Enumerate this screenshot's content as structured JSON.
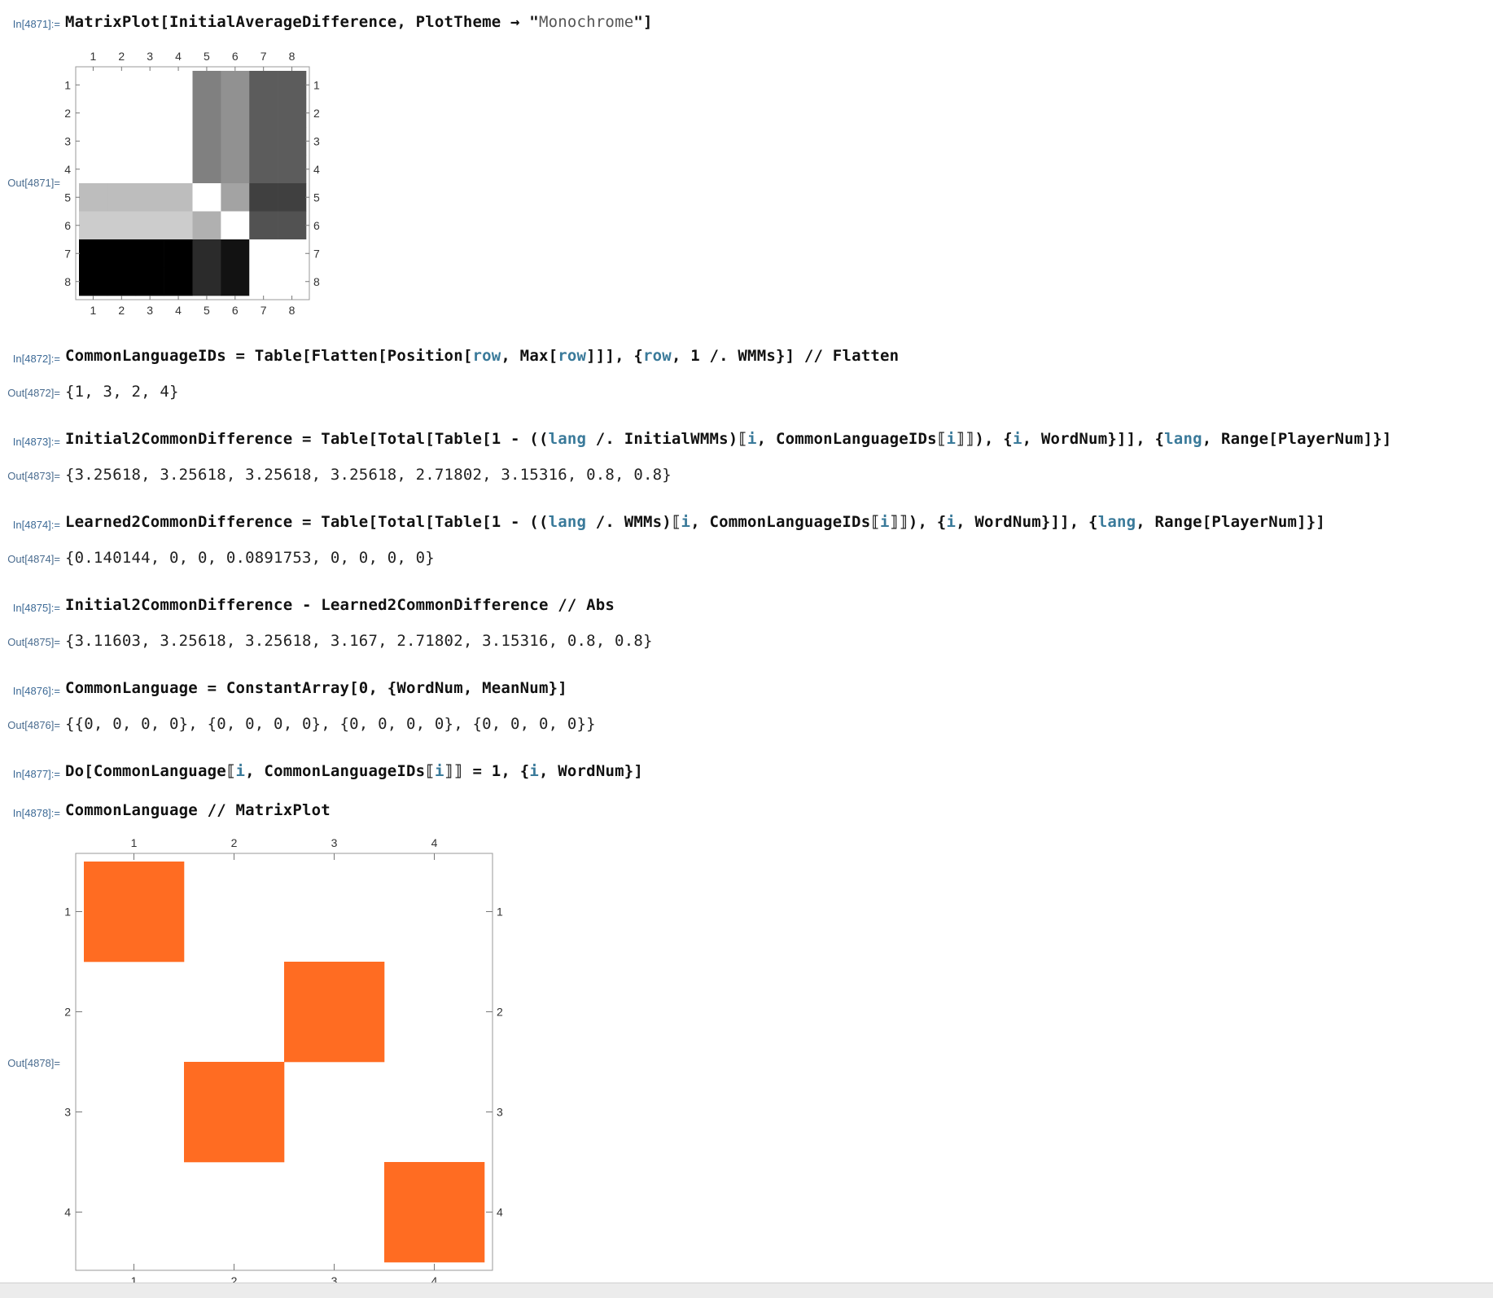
{
  "cells": [
    {
      "in_label": "In[4871]:=",
      "out_label": "Out[4871]="
    },
    {
      "in_label": "In[4872]:=",
      "out_label": "Out[4872]=",
      "output": "{1, 3, 2, 4}"
    },
    {
      "in_label": "In[4873]:=",
      "out_label": "Out[4873]=",
      "output": "{3.25618, 3.25618, 3.25618, 3.25618, 2.71802, 3.15316, 0.8, 0.8}"
    },
    {
      "in_label": "In[4874]:=",
      "out_label": "Out[4874]=",
      "output": "{0.140144, 0, 0, 0.0891753, 0, 0, 0, 0}"
    },
    {
      "in_label": "In[4875]:=",
      "out_label": "Out[4875]=",
      "output": "{3.11603, 3.25618, 3.25618, 3.167, 2.71802, 3.15316, 0.8, 0.8}"
    },
    {
      "in_label": "In[4876]:=",
      "out_label": "Out[4876]=",
      "output": "{{0, 0, 0, 0}, {0, 0, 0, 0}, {0, 0, 0, 0}, {0, 0, 0, 0}}"
    },
    {
      "in_label": "In[4877]:="
    },
    {
      "in_label": "In[4878]:=",
      "out_label": "Out[4878]="
    }
  ],
  "code": {
    "c4871": {
      "a": "MatrixPlot[InitialAverageDifference, PlotTheme → \"",
      "s": "Monochrome",
      "b": "\"]"
    },
    "c4872": {
      "a": "CommonLanguageIDs = Table[Flatten[Position[",
      "v1": "row",
      "b": ", Max[",
      "v2": "row",
      "c": "]]], {",
      "v3": "row",
      "d": ", 1 /. WMMs}] // Flatten"
    },
    "c4873": {
      "a": "Initial2CommonDifference = Table[Total[Table[1 - ((",
      "v1": "lang",
      "b": " /. InitialWMMs)⟦",
      "v2": "i",
      "c": ", CommonLanguageIDs⟦",
      "v3": "i",
      "d": "⟧⟧), {",
      "v4": "i",
      "e": ", WordNum}]], {",
      "v5": "lang",
      "f": ", Range[PlayerNum]}]"
    },
    "c4874": {
      "a": "Learned2CommonDifference = Table[Total[Table[1 - ((",
      "v1": "lang",
      "b": " /. WMMs)⟦",
      "v2": "i",
      "c": ", CommonLanguageIDs⟦",
      "v3": "i",
      "d": "⟧⟧), {",
      "v4": "i",
      "e": ", WordNum}]], {",
      "v5": "lang",
      "f": ", Range[PlayerNum]}]"
    },
    "c4875": "Initial2CommonDifference - Learned2CommonDifference // Abs",
    "c4876": "CommonLanguage = ConstantArray[0, {WordNum, MeanNum}]",
    "c4877": {
      "a": "Do[CommonLanguage⟦",
      "v1": "i",
      "b": ", CommonLanguageIDs⟦",
      "v2": "i",
      "c": "⟧⟧ = 1, {",
      "v3": "i",
      "d": ", WordNum}]"
    },
    "c4878": "CommonLanguage // MatrixPlot"
  },
  "chart_data": [
    {
      "type": "heatmap",
      "rows": 8,
      "cols": 8,
      "row_ticks": [
        "1",
        "2",
        "3",
        "4",
        "5",
        "6",
        "7",
        "8"
      ],
      "col_ticks": [
        "1",
        "2",
        "3",
        "4",
        "5",
        "6",
        "7",
        "8"
      ],
      "colors": "grayscale",
      "values": [
        [
          1.0,
          1.0,
          1.0,
          1.0,
          0.5,
          0.57,
          0.36,
          0.36
        ],
        [
          1.0,
          1.0,
          1.0,
          1.0,
          0.5,
          0.57,
          0.36,
          0.36
        ],
        [
          1.0,
          1.0,
          1.0,
          1.0,
          0.5,
          0.57,
          0.36,
          0.36
        ],
        [
          1.0,
          1.0,
          1.0,
          1.0,
          0.5,
          0.57,
          0.36,
          0.36
        ],
        [
          0.74,
          0.74,
          0.74,
          0.74,
          1.0,
          0.64,
          0.25,
          0.25
        ],
        [
          0.8,
          0.8,
          0.8,
          0.8,
          0.69,
          1.0,
          0.32,
          0.32
        ],
        [
          0.0,
          0.0,
          0.0,
          0.0,
          0.17,
          0.07,
          1.0,
          1.0
        ],
        [
          0.0,
          0.0,
          0.0,
          0.0,
          0.17,
          0.07,
          1.0,
          1.0
        ]
      ]
    },
    {
      "type": "heatmap",
      "rows": 4,
      "cols": 4,
      "row_ticks": [
        "1",
        "2",
        "3",
        "4"
      ],
      "col_ticks": [
        "1",
        "2",
        "3",
        "4"
      ],
      "fill_color": "#ff6c22",
      "values": [
        [
          1,
          0,
          0,
          0
        ],
        [
          0,
          0,
          1,
          0
        ],
        [
          0,
          1,
          0,
          0
        ],
        [
          0,
          0,
          0,
          1
        ]
      ]
    }
  ]
}
